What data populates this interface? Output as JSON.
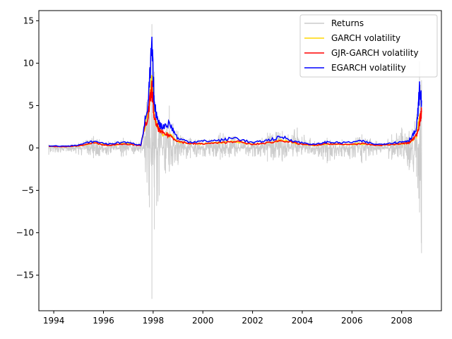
{
  "chart_data": {
    "type": "line",
    "title": "",
    "xlabel": "",
    "ylabel": "",
    "xlim": [
      1993.4,
      2009.6
    ],
    "ylim": [
      -19.2,
      16.2
    ],
    "x_ticks": [
      1994,
      1996,
      1998,
      2000,
      2002,
      2004,
      2006,
      2008
    ],
    "y_ticks": [
      -15,
      -10,
      -5,
      0,
      5,
      10,
      15
    ],
    "grid": false,
    "legend_position": "top-right",
    "series": [
      {
        "name": "Returns",
        "color": "#cccccc",
        "style": "line-with-band",
        "band": [
          {
            "x": 1993.8,
            "low": -0.8,
            "high": 0.4
          },
          {
            "x": 1994.5,
            "low": -0.4,
            "high": 0.3
          },
          {
            "x": 1995.0,
            "low": -0.8,
            "high": 0.6
          },
          {
            "x": 1995.6,
            "low": -1.2,
            "high": 1.4
          },
          {
            "x": 1996.2,
            "low": -0.8,
            "high": 0.8
          },
          {
            "x": 1996.8,
            "low": -1.0,
            "high": 1.2
          },
          {
            "x": 1997.5,
            "low": -0.6,
            "high": 0.6
          },
          {
            "x": 1997.85,
            "low": -7.0,
            "high": 9.5
          },
          {
            "x": 1997.95,
            "low": -17.8,
            "high": 14.6
          },
          {
            "x": 1998.05,
            "low": -9.6,
            "high": 9.0
          },
          {
            "x": 1998.25,
            "low": -5.6,
            "high": 3.5
          },
          {
            "x": 1998.5,
            "low": -3.0,
            "high": 2.0
          },
          {
            "x": 1998.65,
            "low": -2.8,
            "high": 5.0
          },
          {
            "x": 1999.0,
            "low": -2.0,
            "high": 2.0
          },
          {
            "x": 1999.5,
            "low": -1.2,
            "high": 1.2
          },
          {
            "x": 2000.0,
            "low": -1.0,
            "high": 1.0
          },
          {
            "x": 2000.7,
            "low": -1.4,
            "high": 1.8
          },
          {
            "x": 2001.3,
            "low": -1.0,
            "high": 1.4
          },
          {
            "x": 2002.0,
            "low": -1.0,
            "high": 0.8
          },
          {
            "x": 2002.6,
            "low": -1.6,
            "high": 1.8
          },
          {
            "x": 2003.2,
            "low": -1.6,
            "high": 2.0
          },
          {
            "x": 2003.8,
            "low": -1.0,
            "high": 2.4
          },
          {
            "x": 2004.5,
            "low": -0.8,
            "high": 0.8
          },
          {
            "x": 2005.0,
            "low": -1.8,
            "high": 1.2
          },
          {
            "x": 2005.6,
            "low": -1.0,
            "high": 1.0
          },
          {
            "x": 2006.4,
            "low": -1.8,
            "high": 1.6
          },
          {
            "x": 2007.0,
            "low": -0.8,
            "high": 0.8
          },
          {
            "x": 2007.6,
            "low": -1.4,
            "high": 1.6
          },
          {
            "x": 2008.0,
            "low": -1.0,
            "high": 2.4
          },
          {
            "x": 2008.3,
            "low": -2.6,
            "high": 2.0
          },
          {
            "x": 2008.6,
            "low": -3.4,
            "high": 4.0
          },
          {
            "x": 2008.72,
            "low": -7.6,
            "high": 10.2
          },
          {
            "x": 2008.8,
            "low": -12.4,
            "high": 8.0
          }
        ]
      },
      {
        "name": "GARCH volatility",
        "color": "#ffd700",
        "points": [
          [
            1993.8,
            0.2
          ],
          [
            1994.5,
            0.15
          ],
          [
            1995.0,
            0.25
          ],
          [
            1995.6,
            0.6
          ],
          [
            1996.2,
            0.3
          ],
          [
            1996.8,
            0.5
          ],
          [
            1997.5,
            0.3
          ],
          [
            1997.8,
            4.5
          ],
          [
            1997.95,
            8.0
          ],
          [
            1998.05,
            3.5
          ],
          [
            1998.3,
            1.8
          ],
          [
            1998.65,
            1.5
          ],
          [
            1999.0,
            0.8
          ],
          [
            1999.5,
            0.5
          ],
          [
            2000.0,
            0.5
          ],
          [
            2000.7,
            0.6
          ],
          [
            2001.3,
            0.8
          ],
          [
            2002.0,
            0.4
          ],
          [
            2002.6,
            0.6
          ],
          [
            2003.2,
            0.9
          ],
          [
            2003.8,
            0.5
          ],
          [
            2004.5,
            0.3
          ],
          [
            2005.0,
            0.5
          ],
          [
            2005.6,
            0.4
          ],
          [
            2006.4,
            0.5
          ],
          [
            2007.0,
            0.3
          ],
          [
            2007.6,
            0.4
          ],
          [
            2008.0,
            0.5
          ],
          [
            2008.3,
            0.6
          ],
          [
            2008.6,
            1.5
          ],
          [
            2008.72,
            3.5
          ],
          [
            2008.8,
            4.0
          ]
        ]
      },
      {
        "name": "GJR-GARCH volatility",
        "color": "#ff0000",
        "points": [
          [
            1993.8,
            0.2
          ],
          [
            1994.5,
            0.15
          ],
          [
            1995.0,
            0.25
          ],
          [
            1995.6,
            0.6
          ],
          [
            1996.2,
            0.3
          ],
          [
            1996.8,
            0.5
          ],
          [
            1997.5,
            0.3
          ],
          [
            1997.8,
            4.0
          ],
          [
            1997.95,
            7.0
          ],
          [
            1998.05,
            3.2
          ],
          [
            1998.3,
            1.8
          ],
          [
            1998.65,
            1.5
          ],
          [
            1999.0,
            0.8
          ],
          [
            1999.5,
            0.5
          ],
          [
            2000.0,
            0.5
          ],
          [
            2000.7,
            0.6
          ],
          [
            2001.3,
            0.8
          ],
          [
            2002.0,
            0.4
          ],
          [
            2002.6,
            0.6
          ],
          [
            2003.2,
            0.9
          ],
          [
            2003.8,
            0.5
          ],
          [
            2004.5,
            0.3
          ],
          [
            2005.0,
            0.5
          ],
          [
            2005.6,
            0.4
          ],
          [
            2006.4,
            0.5
          ],
          [
            2007.0,
            0.3
          ],
          [
            2007.6,
            0.4
          ],
          [
            2008.0,
            0.5
          ],
          [
            2008.3,
            0.6
          ],
          [
            2008.6,
            1.5
          ],
          [
            2008.72,
            3.0
          ],
          [
            2008.8,
            4.2
          ]
        ]
      },
      {
        "name": "EGARCH volatility",
        "color": "#0000ff",
        "points": [
          [
            1993.8,
            0.25
          ],
          [
            1994.5,
            0.2
          ],
          [
            1995.0,
            0.35
          ],
          [
            1995.6,
            0.8
          ],
          [
            1996.2,
            0.45
          ],
          [
            1996.8,
            0.7
          ],
          [
            1997.5,
            0.35
          ],
          [
            1997.8,
            5.2
          ],
          [
            1997.95,
            11.9
          ],
          [
            1998.05,
            4.8
          ],
          [
            1998.3,
            2.5
          ],
          [
            1998.65,
            2.9
          ],
          [
            1999.0,
            1.1
          ],
          [
            1999.5,
            0.7
          ],
          [
            2000.0,
            0.8
          ],
          [
            2000.7,
            0.9
          ],
          [
            2001.3,
            1.2
          ],
          [
            2002.0,
            0.6
          ],
          [
            2002.6,
            0.9
          ],
          [
            2003.2,
            1.3
          ],
          [
            2003.8,
            0.7
          ],
          [
            2004.5,
            0.4
          ],
          [
            2005.0,
            0.7
          ],
          [
            2005.6,
            0.6
          ],
          [
            2006.4,
            0.8
          ],
          [
            2007.0,
            0.4
          ],
          [
            2007.6,
            0.6
          ],
          [
            2008.0,
            0.7
          ],
          [
            2008.3,
            0.9
          ],
          [
            2008.6,
            2.2
          ],
          [
            2008.72,
            6.8
          ],
          [
            2008.8,
            5.6
          ]
        ]
      }
    ]
  }
}
